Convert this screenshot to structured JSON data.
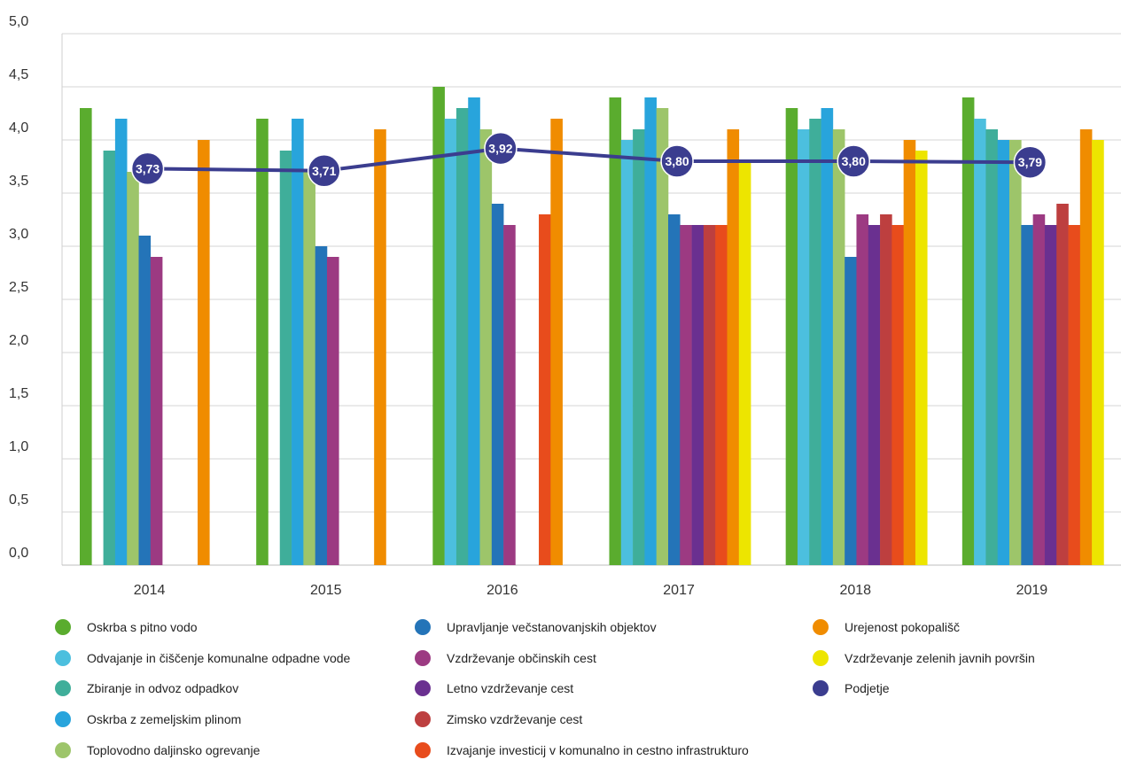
{
  "chart_data": {
    "type": "bar",
    "categories": [
      "2014",
      "2015",
      "2016",
      "2017",
      "2018",
      "2019"
    ],
    "ylim": [
      0,
      5
    ],
    "yticks": [
      "0,0",
      "0,5",
      "1,0",
      "1,5",
      "2,0",
      "2,5",
      "3,0",
      "3,5",
      "4,0",
      "4,5",
      "5,0"
    ],
    "grid": true,
    "legend_position": "bottom",
    "series": [
      {
        "name": "Oskrba s pitno vodo",
        "color": "#5aac2e",
        "values": [
          4.3,
          4.2,
          4.5,
          4.4,
          4.3,
          4.4
        ]
      },
      {
        "name": "Odvajanje in čiščenje komunalne odpadne vode",
        "color": "#4cbfde",
        "values": [
          null,
          null,
          4.2,
          4.0,
          4.1,
          4.2
        ]
      },
      {
        "name": "Zbiranje in odvoz odpadkov",
        "color": "#3fae9a",
        "values": [
          3.9,
          3.9,
          4.3,
          4.1,
          4.2,
          4.1
        ]
      },
      {
        "name": "Oskrba z zemeljskim plinom",
        "color": "#28a4dc",
        "values": [
          4.2,
          4.2,
          4.4,
          4.4,
          4.3,
          4.0
        ]
      },
      {
        "name": "Toplovodno daljinsko ogrevanje",
        "color": "#9dc56a",
        "values": [
          3.7,
          3.7,
          4.1,
          4.3,
          4.1,
          4.0
        ]
      },
      {
        "name": "Upravljanje večstanovanjskih objektov",
        "color": "#2474b8",
        "values": [
          3.1,
          3.0,
          3.4,
          3.3,
          2.9,
          3.2
        ]
      },
      {
        "name": "Vzdrževanje občinskih cest",
        "color": "#9c3a82",
        "values": [
          2.9,
          2.9,
          3.2,
          3.2,
          3.3,
          3.3
        ]
      },
      {
        "name": "Letno vzdrževanje cest",
        "color": "#6a3090",
        "values": [
          null,
          null,
          null,
          3.2,
          3.2,
          3.2
        ]
      },
      {
        "name": "Zimsko vzdrževanje cest",
        "color": "#bd3f3f",
        "values": [
          null,
          null,
          null,
          3.2,
          3.3,
          3.4
        ]
      },
      {
        "name": "Izvajanje investicij v komunalno in cestno infrastrukturo",
        "color": "#e84c1c",
        "values": [
          null,
          null,
          3.3,
          3.2,
          3.2,
          3.2
        ]
      },
      {
        "name": "Urejenost pokopališč",
        "color": "#f08c00",
        "values": [
          4.0,
          4.1,
          4.2,
          4.1,
          4.0,
          4.1
        ]
      },
      {
        "name": "Vzdrževanje zelenih javnih površin",
        "color": "#ede500",
        "values": [
          null,
          null,
          null,
          3.8,
          3.9,
          4.0
        ]
      }
    ],
    "line": {
      "name": "Podjetje",
      "color": "#3b3d8f",
      "values": [
        3.73,
        3.71,
        3.92,
        3.8,
        3.8,
        3.79
      ],
      "labels": [
        "3,73",
        "3,71",
        "3,92",
        "3,80",
        "3,80",
        "3,79"
      ]
    }
  },
  "legend": {
    "columns": [
      [
        {
          "label": "Oskrba s pitno vodo",
          "color": "#5aac2e"
        },
        {
          "label": "Odvajanje in čiščenje komunalne odpadne vode",
          "color": "#4cbfde"
        },
        {
          "label": "Zbiranje in odvoz odpadkov",
          "color": "#3fae9a"
        },
        {
          "label": "Oskrba z zemeljskim plinom",
          "color": "#28a4dc"
        },
        {
          "label": "Toplovodno daljinsko ogrevanje",
          "color": "#9dc56a"
        }
      ],
      [
        {
          "label": "Upravljanje večstanovanjskih objektov",
          "color": "#2474b8"
        },
        {
          "label": "Vzdrževanje občinskih cest",
          "color": "#9c3a82"
        },
        {
          "label": "Letno vzdrževanje cest",
          "color": "#6a3090"
        },
        {
          "label": "Zimsko vzdrževanje cest",
          "color": "#bd3f3f"
        },
        {
          "label": "Izvajanje investicij v komunalno in cestno infrastrukturo",
          "color": "#e84c1c"
        }
      ],
      [
        {
          "label": "Urejenost pokopališč",
          "color": "#f08c00"
        },
        {
          "label": "Vzdrževanje zelenih javnih površin",
          "color": "#ede500"
        },
        {
          "label": "Podjetje",
          "color": "#3b3d8f"
        }
      ]
    ]
  }
}
